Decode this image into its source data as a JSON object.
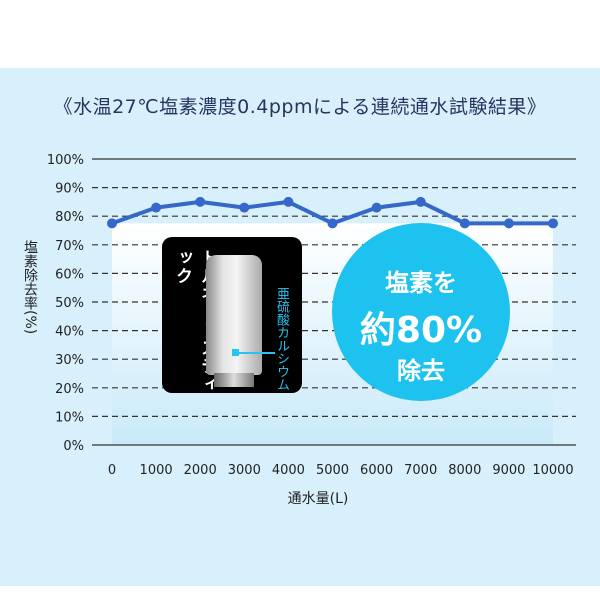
{
  "chart_data": {
    "type": "line",
    "title": "《水温27℃塩素濃度0.4ppmによる連続通水試験結果》",
    "xlabel": "通水量(L)",
    "ylabel": "塩素除去率(%)",
    "x": [
      0,
      1000,
      2000,
      3000,
      4000,
      5000,
      6000,
      7000,
      8000,
      9000,
      10000
    ],
    "x_tick_labels": [
      "0",
      "1000",
      "2000",
      "3000",
      "4000",
      "5000",
      "6000",
      "7000",
      "8000",
      "9000",
      "10000"
    ],
    "series": [
      {
        "values": [
          77.5,
          83,
          85,
          83,
          85,
          77.5,
          83,
          85,
          77.5,
          77.5,
          77.5
        ],
        "color": "#3568c9"
      }
    ],
    "ylim": [
      0,
      100
    ],
    "y_tick_labels": [
      "0%",
      "10%",
      "20%",
      "30%",
      "40%",
      "50%",
      "60%",
      "70%",
      "80%",
      "90%",
      "100%"
    ],
    "grid": "horizontal dashed"
  },
  "inset": {
    "product_name": "トルネードスティック",
    "note": "亜硫酸カルシウム",
    "note_color": "#26c4f0"
  },
  "badge": {
    "line1": "塩素を",
    "line2": "約80%",
    "line3": "除去",
    "color": "#1ec2ef"
  }
}
